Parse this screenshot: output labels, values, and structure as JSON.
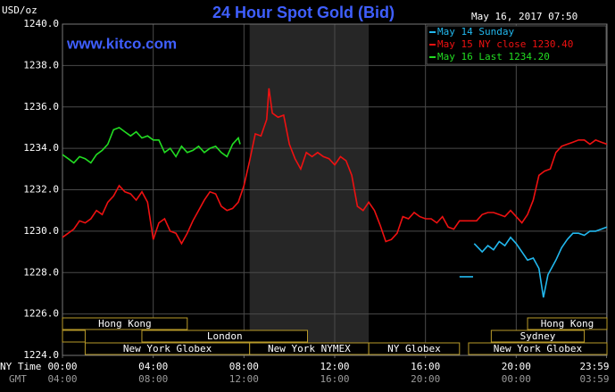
{
  "chart_data": {
    "type": "line",
    "title": "24 Hour Spot Gold (Bid)",
    "brand": "www.kitco.com",
    "timestamp": "May 16, 2017 07:50",
    "y_label": "USD/oz",
    "x_label": "NY Time",
    "x2_label": "GMT",
    "xlim": [
      0,
      24
    ],
    "ylim": [
      1224,
      1240
    ],
    "grid": true,
    "legend": "top-right",
    "highlight": [
      8.25,
      13.5
    ],
    "yticks": [
      {
        "value": 1224,
        "label": "1224.0"
      },
      {
        "value": 1226,
        "label": "1226.0"
      },
      {
        "value": 1228,
        "label": "1228.0"
      },
      {
        "value": 1230,
        "label": "1230.0"
      },
      {
        "value": 1232,
        "label": "1232.0"
      },
      {
        "value": 1234,
        "label": "1234.0"
      },
      {
        "value": 1236,
        "label": "1236.0"
      },
      {
        "value": 1238,
        "label": "1238.0"
      },
      {
        "value": 1240,
        "label": "1240.0"
      }
    ],
    "xticks": [
      {
        "value": 0,
        "label": "00:00"
      },
      {
        "value": 4,
        "label": "04:00"
      },
      {
        "value": 8,
        "label": "08:00"
      },
      {
        "value": 12,
        "label": "12:00"
      },
      {
        "value": 16,
        "label": "16:00"
      },
      {
        "value": 20,
        "label": "20:00"
      },
      {
        "value": 23.983,
        "label": "23:59"
      }
    ],
    "x2ticks": [
      {
        "value": 0,
        "label": "04:00"
      },
      {
        "value": 4,
        "label": "08:00"
      },
      {
        "value": 8,
        "label": "12:00"
      },
      {
        "value": 12,
        "label": "16:00"
      },
      {
        "value": 16,
        "label": "20:00"
      },
      {
        "value": 20,
        "label": "00:00"
      },
      {
        "value": 23.983,
        "label": "03:59"
      }
    ],
    "session_rows": [
      [
        {
          "name": "Hong Kong",
          "start": 0,
          "end": 5.5
        },
        {
          "name": "Hong Kong",
          "start": 20.5,
          "end": 24
        }
      ],
      [
        {
          "start": 0,
          "end": 1
        },
        {
          "name": "London",
          "start": 3.5,
          "end": 10.8
        },
        {
          "name": "Sydney",
          "start": 18.9,
          "end": 23
        }
      ],
      [
        {
          "name": "New York Globex",
          "start": 1,
          "end": 8.25
        },
        {
          "name": "New York NYMEX",
          "start": 8.25,
          "end": 13.5
        },
        {
          "name": "NY Globex",
          "start": 13.5,
          "end": 17.5
        },
        {
          "name": "New York Globex",
          "start": 17.9,
          "end": 24
        }
      ]
    ],
    "series": [
      {
        "name": "May 14 Sunday",
        "color": "#22b8ee",
        "x": [
          17.5,
          18.1,
          18.12,
          18.15,
          18.5,
          18.75,
          19.0,
          19.25,
          19.5,
          19.75,
          20.0,
          20.25,
          20.5,
          20.75,
          21.0,
          21.2,
          21.4,
          21.75,
          22.0,
          22.25,
          22.5,
          22.75,
          23.0,
          23.25,
          23.5,
          23.75,
          24.0
        ],
        "values": [
          1227.8,
          1227.8,
          null,
          1229.4,
          1229.0,
          1229.3,
          1229.1,
          1229.5,
          1229.3,
          1229.7,
          1229.4,
          1229.0,
          1228.6,
          1228.7,
          1228.2,
          1226.8,
          1227.9,
          1228.6,
          1229.2,
          1229.6,
          1229.9,
          1229.9,
          1229.8,
          1230.0,
          1230.0,
          1230.1,
          1230.2
        ]
      },
      {
        "name": "May 15 NY close 1230.40",
        "color": "#ee1111",
        "x": [
          0,
          0.25,
          0.5,
          0.75,
          1,
          1.25,
          1.5,
          1.75,
          2,
          2.25,
          2.5,
          2.75,
          3,
          3.25,
          3.5,
          3.75,
          4,
          4.25,
          4.5,
          4.75,
          5,
          5.25,
          5.5,
          5.75,
          6,
          6.25,
          6.5,
          6.75,
          7,
          7.25,
          7.5,
          7.75,
          8,
          8.25,
          8.5,
          8.75,
          9,
          9.1,
          9.25,
          9.5,
          9.75,
          10,
          10.25,
          10.5,
          10.75,
          11,
          11.25,
          11.5,
          11.75,
          12,
          12.25,
          12.5,
          12.75,
          13,
          13.25,
          13.5,
          13.75,
          14,
          14.25,
          14.5,
          14.75,
          15,
          15.25,
          15.5,
          15.75,
          16,
          16.25,
          16.5,
          16.75,
          17,
          17.25,
          17.5,
          17.75,
          18,
          18.25,
          18.5,
          18.75,
          19,
          19.25,
          19.5,
          19.75,
          20,
          20.25,
          20.5,
          20.75,
          21,
          21.25,
          21.5,
          21.75,
          22,
          22.25,
          22.5,
          22.75,
          23,
          23.25,
          23.5,
          23.75,
          24
        ],
        "values": [
          1229.7,
          1229.9,
          1230.1,
          1230.5,
          1230.4,
          1230.6,
          1231.0,
          1230.8,
          1231.4,
          1231.7,
          1232.2,
          1231.9,
          1231.8,
          1231.5,
          1231.9,
          1231.4,
          1229.6,
          1230.4,
          1230.6,
          1230.0,
          1229.9,
          1229.4,
          1229.9,
          1230.5,
          1231.0,
          1231.5,
          1231.9,
          1231.8,
          1231.2,
          1231.0,
          1231.1,
          1231.4,
          1232.2,
          1233.4,
          1234.7,
          1234.6,
          1235.4,
          1236.9,
          1235.7,
          1235.5,
          1235.6,
          1234.2,
          1233.5,
          1233.0,
          1233.8,
          1233.6,
          1233.8,
          1233.6,
          1233.5,
          1233.2,
          1233.6,
          1233.4,
          1232.7,
          1231.2,
          1231.0,
          1231.4,
          1231.0,
          1230.3,
          1229.5,
          1229.6,
          1229.9,
          1230.7,
          1230.6,
          1230.9,
          1230.7,
          1230.6,
          1230.6,
          1230.4,
          1230.7,
          1230.2,
          1230.1,
          1230.5,
          1230.5,
          1230.5,
          1230.5,
          1230.8,
          1230.9,
          1230.9,
          1230.8,
          1230.7,
          1231.0,
          1230.7,
          1230.4,
          1230.8,
          1231.5,
          1232.7,
          1232.9,
          1233.0,
          1233.8,
          1234.1,
          1234.2,
          1234.3,
          1234.4,
          1234.4,
          1234.2,
          1234.4,
          1234.3,
          1234.2
        ]
      },
      {
        "name": "May 16 Last 1234.20",
        "color": "#22dd22",
        "x": [
          0,
          0.25,
          0.5,
          0.75,
          1,
          1.25,
          1.5,
          1.75,
          2,
          2.25,
          2.5,
          2.75,
          3,
          3.25,
          3.5,
          3.75,
          4,
          4.25,
          4.5,
          4.75,
          5,
          5.25,
          5.5,
          5.75,
          6,
          6.25,
          6.5,
          6.75,
          7,
          7.25,
          7.5,
          7.75,
          7.83
        ],
        "values": [
          1233.7,
          1233.5,
          1233.3,
          1233.6,
          1233.5,
          1233.3,
          1233.7,
          1233.9,
          1234.2,
          1234.9,
          1235.0,
          1234.8,
          1234.6,
          1234.8,
          1234.5,
          1234.6,
          1234.4,
          1234.4,
          1233.8,
          1234.0,
          1233.6,
          1234.1,
          1233.8,
          1233.9,
          1234.1,
          1233.8,
          1234.0,
          1234.1,
          1233.8,
          1233.6,
          1234.2,
          1234.5,
          1234.2
        ]
      }
    ]
  }
}
